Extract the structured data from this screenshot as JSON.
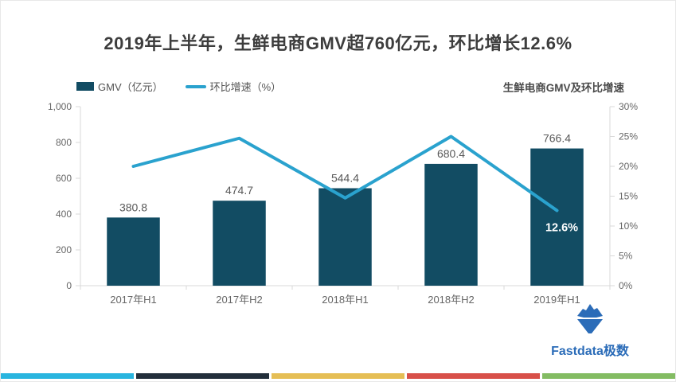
{
  "title": "2019年上半年，生鲜电商GMV超760亿元，环比增长12.6%",
  "legend": {
    "bar_label": "GMV（亿元）",
    "line_label": "环比增速（%）"
  },
  "chart_subtitle": "生鲜电商GMV及环比增速",
  "chart_data": {
    "type": "bar",
    "subtype": "bar+line-dual-axis",
    "categories": [
      "2017年H1",
      "2017年H2",
      "2018年H1",
      "2018年H2",
      "2019年H1"
    ],
    "series": [
      {
        "name": "GMV（亿元）",
        "type": "bar",
        "axis": "left",
        "values": [
          380.8,
          474.7,
          544.4,
          680.4,
          766.4
        ],
        "labels": [
          "380.8",
          "474.7",
          "544.4",
          "680.4",
          "766.4"
        ],
        "color": "#124C63"
      },
      {
        "name": "环比增速（%）",
        "type": "line",
        "axis": "right",
        "values": [
          20.0,
          24.7,
          14.7,
          25.0,
          12.6
        ],
        "color": "#2AA2CE"
      }
    ],
    "highlight_label": "12.6%",
    "left_axis": {
      "label": "",
      "min": 0,
      "max": 1000,
      "ticks": [
        "0",
        "200",
        "400",
        "600",
        "800",
        "1,000"
      ]
    },
    "right_axis": {
      "label": "",
      "min": 0,
      "max": 30,
      "ticks": [
        "0%",
        "5%",
        "10%",
        "15%",
        "20%",
        "25%",
        "30%"
      ]
    },
    "grid": false,
    "legend_position": "top-left"
  },
  "logo": {
    "text": "Fastdata极数"
  },
  "footer_colors": [
    "#29B5DF",
    "#232F3B",
    "#E5BE55",
    "#D85049",
    "#83BC63"
  ]
}
